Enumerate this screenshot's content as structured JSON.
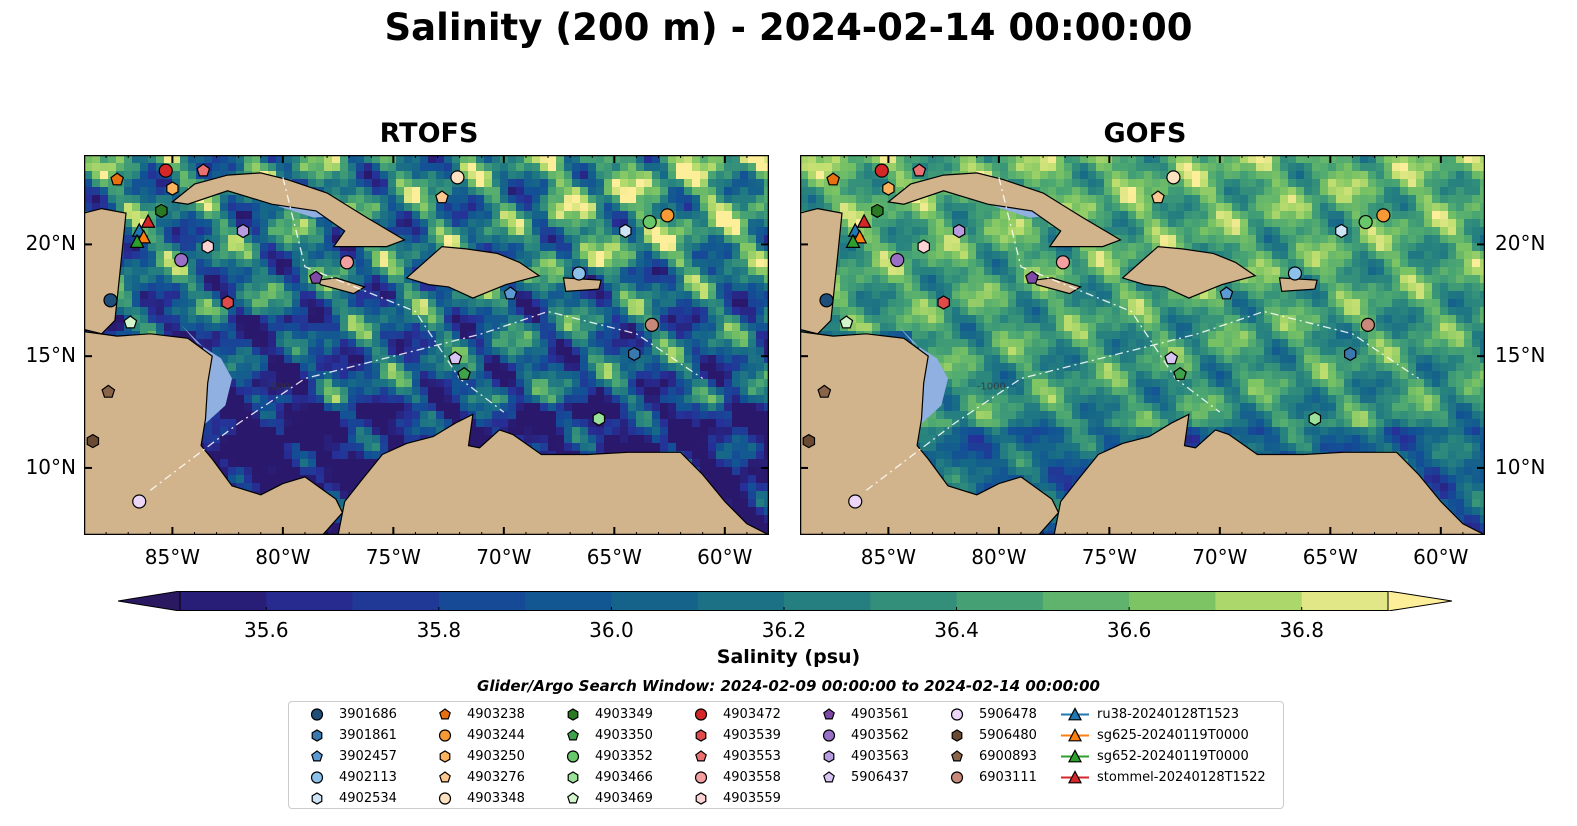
{
  "title": "Salinity (200 m) - 2024-02-14 00:00:00",
  "panels": [
    {
      "title": "RTOFS",
      "mode": "rtofs"
    },
    {
      "title": "GOFS",
      "mode": "gofs"
    }
  ],
  "map": {
    "lon_range": [
      -89,
      -58
    ],
    "lat_range": [
      7,
      24
    ],
    "lon_ticks": [
      -85,
      -80,
      -75,
      -70,
      -65,
      -60
    ],
    "lon_tick_labels": [
      "85°W",
      "80°W",
      "75°W",
      "70°W",
      "65°W",
      "60°W"
    ],
    "lat_ticks": [
      10,
      15,
      20
    ],
    "lat_tick_labels": [
      "10°N",
      "15°N",
      "20°N"
    ],
    "contour_labels": [
      "-100",
      "-1000"
    ],
    "land_color": "#d2b48c",
    "shelf_color": "#8fb0e0",
    "coast_color": "#000000"
  },
  "colorbar": {
    "label": "Salinity (psu)",
    "range": [
      35.5,
      36.9
    ],
    "step": 0.1,
    "ticks": [
      "35.6",
      "35.8",
      "36.0",
      "36.2",
      "36.4",
      "36.6",
      "36.8"
    ],
    "extend": "both",
    "colormap": "haline",
    "under_color": "#2a1860",
    "over_color": "#fdee99"
  },
  "search_window": "Glider/Argo Search Window: 2024-02-09 00:00:00 to 2024-02-14 00:00:00",
  "legend": [
    {
      "label": "3901686",
      "marker": "circle",
      "color": "#1f4e7a",
      "lon": -87.8,
      "lat": 17.5
    },
    {
      "label": "3901861",
      "marker": "hexagon",
      "color": "#3a78b0",
      "lon": -64.1,
      "lat": 15.1
    },
    {
      "label": "3902457",
      "marker": "pentagon",
      "color": "#5c9ad4",
      "lon": -69.7,
      "lat": 17.8
    },
    {
      "label": "4902113",
      "marker": "circle",
      "color": "#8cc2ea",
      "lon": -66.6,
      "lat": 18.7
    },
    {
      "label": "4902534",
      "marker": "hexagon",
      "color": "#cce4f6",
      "lon": -64.5,
      "lat": 20.6
    },
    {
      "label": "4903238",
      "marker": "pentagon",
      "color": "#e8700e",
      "lon": -87.5,
      "lat": 22.9
    },
    {
      "label": "4903244",
      "marker": "circle",
      "color": "#f79a35",
      "lon": -62.6,
      "lat": 21.3
    },
    {
      "label": "4903250",
      "marker": "hexagon",
      "color": "#fbb35e",
      "lon": -85.0,
      "lat": 22.5
    },
    {
      "label": "4903276",
      "marker": "pentagon",
      "color": "#fcc890",
      "lon": -72.8,
      "lat": 22.1
    },
    {
      "label": "4903348",
      "marker": "circle",
      "color": "#fde1c0",
      "lon": -72.1,
      "lat": 23.0
    },
    {
      "label": "4903349",
      "marker": "hexagon",
      "color": "#2a7a24",
      "lon": -85.5,
      "lat": 21.5
    },
    {
      "label": "4903350",
      "marker": "pentagon",
      "color": "#3ea34a",
      "lon": -71.8,
      "lat": 14.2
    },
    {
      "label": "4903352",
      "marker": "circle",
      "color": "#67c76a",
      "lon": -63.4,
      "lat": 21.0
    },
    {
      "label": "4903466",
      "marker": "hexagon",
      "color": "#9ae29a",
      "lon": -65.7,
      "lat": 12.2
    },
    {
      "label": "4903469",
      "marker": "pentagon",
      "color": "#d2f5cc",
      "lon": -86.9,
      "lat": 16.5
    },
    {
      "label": "4903472",
      "marker": "circle",
      "color": "#d62728",
      "lon": -85.3,
      "lat": 23.3
    },
    {
      "label": "4903539",
      "marker": "hexagon",
      "color": "#e04a4a",
      "lon": -82.5,
      "lat": 17.4
    },
    {
      "label": "4903553",
      "marker": "pentagon",
      "color": "#ec7070",
      "lon": -83.6,
      "lat": 23.3
    },
    {
      "label": "4903558",
      "marker": "circle",
      "color": "#f5a0a0",
      "lon": -77.1,
      "lat": 19.2
    },
    {
      "label": "4903559",
      "marker": "hexagon",
      "color": "#fcd2d2",
      "lon": -83.4,
      "lat": 19.9
    },
    {
      "label": "4903561",
      "marker": "pentagon",
      "color": "#7e4aa6",
      "lon": -78.5,
      "lat": 18.5
    },
    {
      "label": "4903562",
      "marker": "circle",
      "color": "#9a70c6",
      "lon": -84.6,
      "lat": 19.3
    },
    {
      "label": "4903563",
      "marker": "hexagon",
      "color": "#b99ce0",
      "lon": -81.8,
      "lat": 20.6
    },
    {
      "label": "5906437",
      "marker": "pentagon",
      "color": "#d8c4f2",
      "lon": -72.2,
      "lat": 14.9
    },
    {
      "label": "5906478",
      "marker": "circle",
      "color": "#ecd6f8",
      "lon": -86.5,
      "lat": 8.5
    },
    {
      "label": "5906480",
      "marker": "hexagon",
      "color": "#6b4a32",
      "lon": -88.6,
      "lat": 11.2
    },
    {
      "label": "6900893",
      "marker": "pentagon",
      "color": "#8a6448",
      "lon": -87.9,
      "lat": 13.4
    },
    {
      "label": "6903111",
      "marker": "circle",
      "color": "#c8887a",
      "lon": -63.3,
      "lat": 16.4
    },
    {
      "label": "ru38-20240128T1523",
      "marker": "triangle-line",
      "color": "#1f77b4",
      "lon": -86.5,
      "lat": 20.6
    },
    {
      "label": "sg625-20240119T0000",
      "marker": "triangle-line",
      "color": "#ff7f0e",
      "lon": -86.3,
      "lat": 20.3
    },
    {
      "label": "sg652-20240119T0000",
      "marker": "triangle-line",
      "color": "#2ca02c",
      "lon": -86.6,
      "lat": 20.1
    },
    {
      "label": "stommel-20240128T1522",
      "marker": "triangle-line",
      "color": "#d62728",
      "lon": -86.1,
      "lat": 21.0
    }
  ]
}
